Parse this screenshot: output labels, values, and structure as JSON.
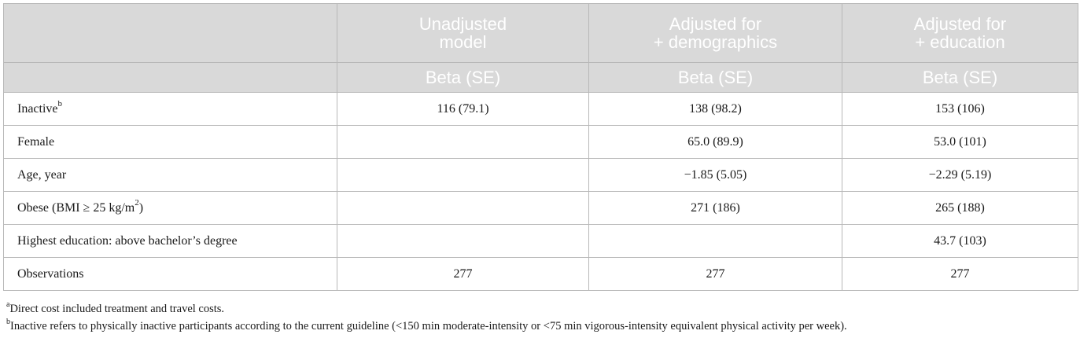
{
  "table": {
    "columns": [
      {
        "title": "",
        "subtitle": ""
      },
      {
        "title_line1": "Unadjusted",
        "title_line2": "model",
        "subtitle": "Beta (SE)"
      },
      {
        "title_line1": "Adjusted for",
        "title_line2": "+ demographics",
        "subtitle": "Beta (SE)"
      },
      {
        "title_line1": "Adjusted for",
        "title_line2": "+ education",
        "subtitle": "Beta (SE)"
      }
    ],
    "rows": [
      {
        "label": "Inactive",
        "label_sup": "b",
        "label_after": "",
        "v1": "116 (79.1)",
        "v2": "138 (98.2)",
        "v3": "153 (106)"
      },
      {
        "label": "Female",
        "label_sup": "",
        "label_after": "",
        "v1": "",
        "v2": "65.0 (89.9)",
        "v3": "53.0 (101)"
      },
      {
        "label": "Age, year",
        "label_sup": "",
        "label_after": "",
        "v1": "",
        "v2": "−1.85 (5.05)",
        "v3": "−2.29 (5.19)"
      },
      {
        "label": "Obese (BMI ≥ 25 kg/m",
        "label_sup": "2",
        "label_after": ")",
        "v1": "",
        "v2": "271 (186)",
        "v3": "265 (188)"
      },
      {
        "label": "Highest education: above bachelor’s degree",
        "label_sup": "",
        "label_after": "",
        "v1": "",
        "v2": "",
        "v3": "43.7 (103)"
      },
      {
        "label": "Observations",
        "label_sup": "",
        "label_after": "",
        "v1": "277",
        "v2": "277",
        "v3": "277"
      }
    ]
  },
  "footnotes": [
    {
      "mark": "a",
      "text": "Direct cost included treatment and travel costs."
    },
    {
      "mark": "b",
      "text": "Inactive refers to physically inactive participants according to the current guideline (<150 min moderate-intensity or <75 min vigorous-intensity equivalent physical activity per week)."
    }
  ]
}
